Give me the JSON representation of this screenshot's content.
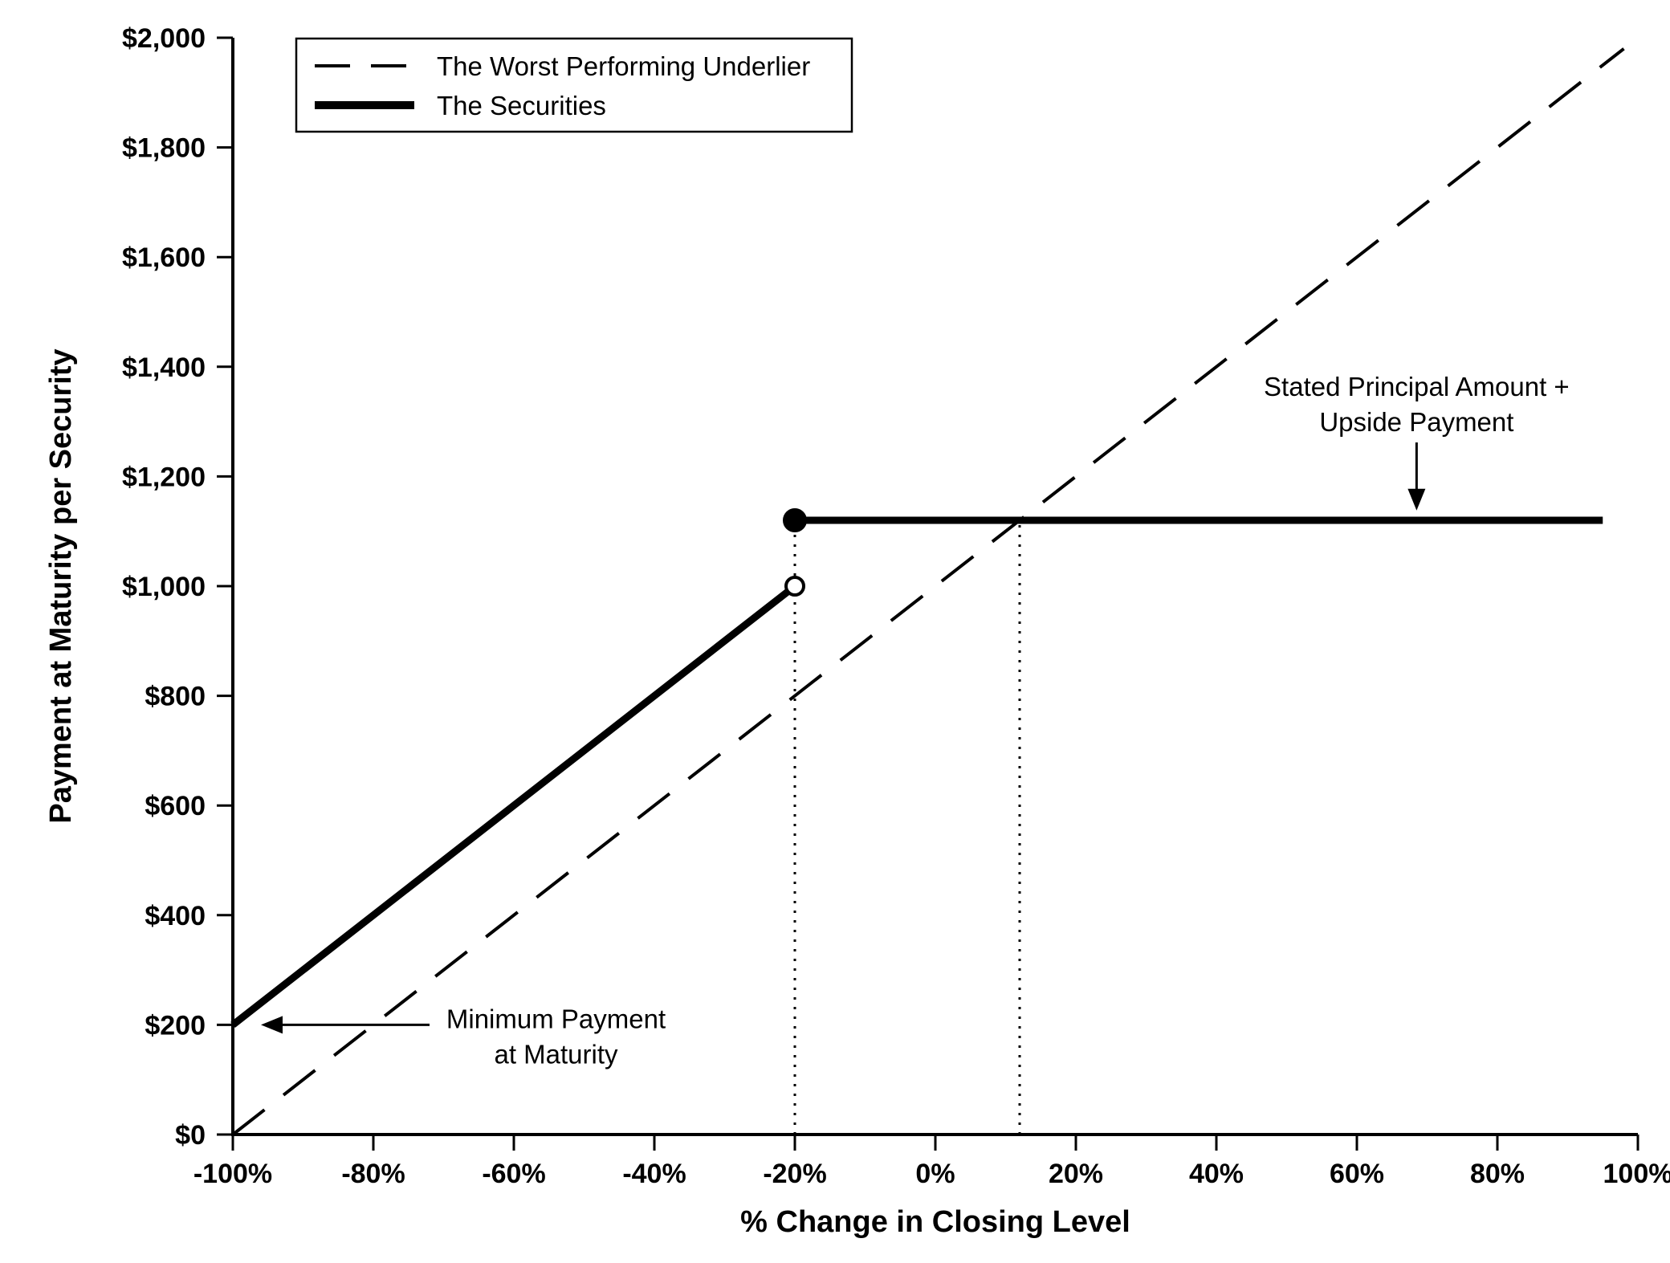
{
  "figure": {
    "background": "#ffffff",
    "ink_color": "#000000"
  },
  "chart_data": {
    "type": "line",
    "title": "",
    "xlabel": "% Change in Closing Level",
    "ylabel": "Payment at Maturity per Security",
    "xlim": [
      -100,
      100
    ],
    "ylim": [
      0,
      2000
    ],
    "grid": false,
    "x_ticks": [
      -100,
      -80,
      -60,
      -40,
      -20,
      0,
      20,
      40,
      60,
      80,
      100
    ],
    "x_tick_labels": [
      "-100%",
      "-80%",
      "-60%",
      "-40%",
      "-20%",
      "0%",
      "20%",
      "40%",
      "60%",
      "80%",
      "100%"
    ],
    "y_ticks": [
      0,
      200,
      400,
      600,
      800,
      1000,
      1200,
      1400,
      1600,
      1800,
      2000
    ],
    "y_tick_labels": [
      "$0",
      "$200",
      "$400",
      "$600",
      "$800",
      "$1,000",
      "$1,200",
      "$1,400",
      "$1,600",
      "$1,800",
      "$2,000"
    ],
    "legend": {
      "position": "top-left",
      "entries": [
        {
          "label": "The Worst Performing Underlier",
          "sample": "dashed"
        },
        {
          "label": "The Securities",
          "sample": "solid-thick"
        }
      ]
    },
    "series": [
      {
        "name": "The Worst Performing Underlier",
        "style": "dashed",
        "stroke_width": 4,
        "segments": [
          {
            "points": [
              [
                -100,
                0
              ],
              [
                98,
                1980
              ]
            ]
          }
        ],
        "markers": []
      },
      {
        "name": "The Securities",
        "style": "solid",
        "stroke_width": 9,
        "segments": [
          {
            "points": [
              [
                -100,
                200
              ],
              [
                -20,
                1000
              ]
            ]
          },
          {
            "points": [
              [
                -20,
                1120
              ],
              [
                95,
                1120
              ]
            ]
          }
        ],
        "markers": [
          {
            "at": [
              -20,
              1000
            ],
            "type": "open-circle"
          },
          {
            "at": [
              -20,
              1120
            ],
            "type": "filled-circle"
          }
        ]
      }
    ],
    "reference_lines": [
      {
        "style": "dotted",
        "x": -20,
        "y_from": 0,
        "y_to": 1118
      },
      {
        "style": "dotted",
        "x": 12,
        "y_from": 0,
        "y_to": 1118
      }
    ],
    "annotations": [
      {
        "id": "stated-principal-upside",
        "lines": [
          "Stated Principal Amount +",
          "Upside Payment"
        ],
        "arrow": "down",
        "tip": [
          68.5,
          1138
        ],
        "tail": [
          68.5,
          1262
        ],
        "text_center_x": 68.5
      },
      {
        "id": "minimum-payment",
        "lines": [
          "Minimum Payment",
          "at Maturity"
        ],
        "arrow": "left",
        "tip": [
          -96,
          200
        ],
        "tail": [
          -72,
          200
        ],
        "text_center_x": -54
      }
    ]
  }
}
